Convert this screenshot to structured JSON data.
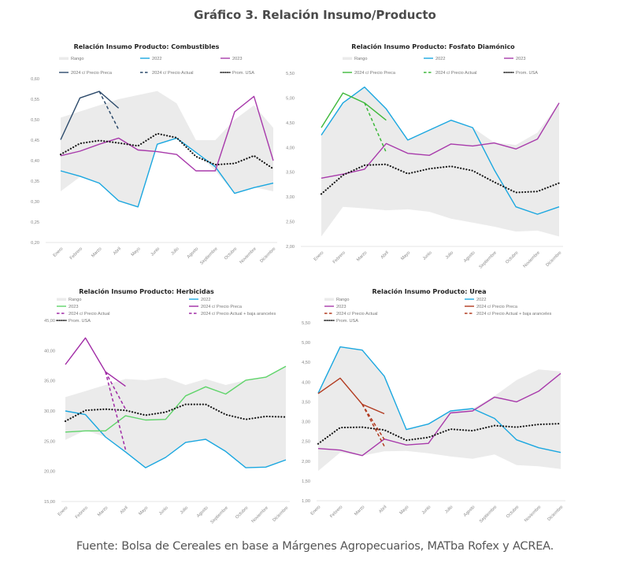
{
  "title": "Gráfico 3. Relación Insumo/Producto",
  "footer": "Fuente: Bolsa de Cereales en base a Márgenes Agropecuarios, MATba Rofex y ACREA.",
  "colors": {
    "range": "#ebebeb",
    "y2022": "#1aa7e0",
    "y2023": "#a83aab",
    "prom_usa": "#1a1a1a",
    "combustibles_2024": "#2c4a6b",
    "fosfato_2024": "#3db83a",
    "herbicidas_2023": "#5fd46a",
    "herbicidas_2024": "#a02aa5",
    "urea_2024": "#b23a1f"
  },
  "chart_data": [
    {
      "id": "combustibles",
      "type": "line",
      "title": "Relación Insumo Producto: Combustibles",
      "categories": [
        "Enero",
        "Febrero",
        "Marzo",
        "Abril",
        "Mayo",
        "Junio",
        "Julio",
        "Agosto",
        "Septiembre",
        "Octubre",
        "Noviembre",
        "Diciembre"
      ],
      "ylim": [
        0.2,
        0.6
      ],
      "yticks": [
        "0,20",
        "0,25",
        "0,30",
        "0,35",
        "0,40",
        "0,45",
        "0,50",
        "0,55",
        "0,60"
      ],
      "ytick_values": [
        0.2,
        0.25,
        0.3,
        0.35,
        0.4,
        0.45,
        0.5,
        0.55,
        0.6
      ],
      "legend": [
        "Rango",
        "2022",
        "2023",
        "2024 c/ Precio Preca",
        "2024 c/ Precio Actual",
        "Prom. USA"
      ],
      "range": {
        "name": "Rango",
        "upper": [
          0.505,
          0.52,
          0.535,
          0.55,
          0.56,
          0.57,
          0.54,
          0.45,
          0.45,
          0.5,
          0.535,
          0.48
        ],
        "lower": [
          0.325,
          0.36,
          0.345,
          0.3,
          0.285,
          0.44,
          0.455,
          0.42,
          0.375,
          0.32,
          0.335,
          0.325
        ]
      },
      "series": [
        {
          "name": "2022",
          "color_key": "y2022",
          "style": "solid",
          "values": [
            0.375,
            0.362,
            0.345,
            0.302,
            0.287,
            0.44,
            0.455,
            0.42,
            0.385,
            0.32,
            0.334,
            0.345
          ]
        },
        {
          "name": "2023",
          "color_key": "y2023",
          "style": "solid",
          "values": [
            0.412,
            0.423,
            0.44,
            0.455,
            0.426,
            0.422,
            0.415,
            0.375,
            0.375,
            0.519,
            0.557,
            0.4
          ]
        },
        {
          "name": "2024 c/ Precio Preca",
          "color_key": "combustibles_2024",
          "style": "solid",
          "values": [
            0.451,
            0.553,
            0.569,
            0.528,
            null,
            null,
            null,
            null,
            null,
            null,
            null,
            null
          ]
        },
        {
          "name": "2024 c/ Precio Actual",
          "color_key": "combustibles_2024",
          "style": "dashed",
          "values": [
            null,
            null,
            0.569,
            0.476,
            null,
            null,
            null,
            null,
            null,
            null,
            null,
            null
          ]
        },
        {
          "name": "Prom. USA",
          "color_key": "prom_usa",
          "style": "dotted",
          "values": [
            0.415,
            0.442,
            0.449,
            0.443,
            0.436,
            0.466,
            0.456,
            0.41,
            0.39,
            0.393,
            0.412,
            0.38
          ]
        }
      ]
    },
    {
      "id": "fosfato",
      "type": "line",
      "title": "Relación Insumo Producto: Fosfato Diamónico",
      "categories": [
        "Enero",
        "Febrero",
        "Marzo",
        "Abril",
        "Mayo",
        "Junio",
        "Julio",
        "Agosto",
        "Septiembre",
        "Octubre",
        "Noviembre",
        "Diciembre"
      ],
      "ylim": [
        2.0,
        5.5
      ],
      "yticks": [
        "2,00",
        "2,50",
        "3,00",
        "3,50",
        "4,00",
        "4,50",
        "5,00",
        "5,50"
      ],
      "ytick_values": [
        2.0,
        2.5,
        3.0,
        3.5,
        4.0,
        4.5,
        5.0,
        5.5
      ],
      "legend": [
        "Rango",
        "2022",
        "2023",
        "2024 c/ Precio Preca",
        "2024 c/ Precio Actual",
        "Prom. USA"
      ],
      "range": {
        "name": "Rango",
        "upper": [
          4.25,
          4.9,
          5.22,
          4.78,
          4.15,
          4.35,
          4.55,
          4.4,
          4.1,
          4.05,
          4.3,
          4.9
        ],
        "lower": [
          2.2,
          2.8,
          2.77,
          2.73,
          2.75,
          2.7,
          2.56,
          2.48,
          2.4,
          2.3,
          2.32,
          2.2
        ]
      },
      "series": [
        {
          "name": "2022",
          "color_key": "y2022",
          "style": "solid",
          "values": [
            4.25,
            4.9,
            5.22,
            4.78,
            4.15,
            4.35,
            4.55,
            4.4,
            3.55,
            2.8,
            2.65,
            2.8
          ]
        },
        {
          "name": "2023",
          "color_key": "y2023",
          "style": "solid",
          "values": [
            3.38,
            3.46,
            3.56,
            4.08,
            3.88,
            3.84,
            4.07,
            4.03,
            4.09,
            3.97,
            4.17,
            4.9
          ]
        },
        {
          "name": "2024 c/ Precio Preca",
          "color_key": "fosfato_2024",
          "style": "solid",
          "values": [
            4.4,
            5.1,
            4.9,
            4.55,
            null,
            null,
            null,
            null,
            null,
            null,
            null,
            null
          ]
        },
        {
          "name": "2024 c/ Precio Actual",
          "color_key": "fosfato_2024",
          "style": "dashed",
          "values": [
            null,
            null,
            4.9,
            3.9,
            null,
            null,
            null,
            null,
            null,
            null,
            null,
            null
          ]
        },
        {
          "name": "Prom. USA",
          "color_key": "prom_usa",
          "style": "dotted",
          "values": [
            3.06,
            3.44,
            3.64,
            3.66,
            3.47,
            3.57,
            3.62,
            3.53,
            3.3,
            3.09,
            3.11,
            3.28
          ]
        }
      ]
    },
    {
      "id": "herbicidas",
      "type": "line",
      "title": "Relación Insumo Producto: Herbicidas",
      "categories": [
        "Enero",
        "Febrero",
        "Marzo",
        "Abril",
        "Mayo",
        "Junio",
        "Julio",
        "Agosto",
        "Septiembre",
        "Octubre",
        "Noviembre",
        "Diciembre"
      ],
      "ylim": [
        15,
        45
      ],
      "yticks": [
        "15,00",
        "20,00",
        "25,00",
        "30,00",
        "35,00",
        "40,00",
        "45,00"
      ],
      "ytick_values": [
        15,
        20,
        25,
        30,
        35,
        40,
        45
      ],
      "legend": [
        "Rango",
        "2022",
        "2023",
        "2024 c/ Precio Preca",
        "2024 c/ Precio Actual",
        "2024 c/ Precio Actual + baja aranceles",
        "Prom. USA"
      ],
      "range": {
        "name": "Rango",
        "upper": [
          32.3,
          33.3,
          34.3,
          35.3,
          35.1,
          35.5,
          34.3,
          35.3,
          34.3,
          35.1,
          35.6,
          37.4
        ],
        "lower": [
          25.2,
          26.8,
          25.7,
          23.2,
          20.6,
          22.3,
          24.8,
          25.3,
          23.3,
          20.6,
          20.7,
          21.9
        ]
      },
      "series": [
        {
          "name": "2022",
          "color_key": "y2022",
          "style": "solid",
          "values": [
            30.0,
            29.4,
            25.7,
            23.2,
            20.6,
            22.3,
            24.8,
            25.3,
            23.3,
            20.6,
            20.7,
            21.9
          ]
        },
        {
          "name": "2023",
          "color_key": "herbicidas_2023",
          "style": "solid",
          "values": [
            26.5,
            26.7,
            26.7,
            29.2,
            28.5,
            28.6,
            32.5,
            34.0,
            32.8,
            35.1,
            35.6,
            37.4
          ]
        },
        {
          "name": "2024 c/ Precio Preca",
          "color_key": "herbicidas_2024",
          "style": "solid",
          "values": [
            37.7,
            42.1,
            36.5,
            34.1,
            null,
            null,
            null,
            null,
            null,
            null,
            null,
            null
          ]
        },
        {
          "name": "2024 c/ Precio Actual",
          "color_key": "herbicidas_2024",
          "style": "dashed",
          "values": [
            null,
            null,
            36.5,
            23.6,
            null,
            null,
            null,
            null,
            null,
            null,
            null,
            null
          ]
        },
        {
          "name": "2024 c/ Precio Actual + baja aranceles",
          "color_key": "herbicidas_2024",
          "style": "dashed",
          "values": [
            null,
            null,
            36.5,
            30.3,
            null,
            null,
            null,
            null,
            null,
            null,
            null,
            null
          ]
        },
        {
          "name": "Prom. USA",
          "color_key": "prom_usa",
          "style": "dotted",
          "values": [
            28.3,
            30.1,
            30.3,
            30.1,
            29.3,
            29.8,
            31.1,
            31.1,
            29.4,
            28.6,
            29.1,
            29.0
          ]
        }
      ]
    },
    {
      "id": "urea",
      "type": "line",
      "title": "Relación Insumo Producto: Urea",
      "categories": [
        "Enero",
        "Febrero",
        "Marzo",
        "Abril",
        "Mayo",
        "Junio",
        "Julio",
        "Agosto",
        "Septiembre",
        "Octubre",
        "Noviembre",
        "Diciembre"
      ],
      "ylim": [
        1.0,
        5.5
      ],
      "yticks": [
        "1,00",
        "1,50",
        "2,00",
        "2,50",
        "3,00",
        "3,50",
        "4,00",
        "4,50",
        "5,00",
        "5,50"
      ],
      "ytick_values": [
        1.0,
        1.5,
        2.0,
        2.5,
        3.0,
        3.5,
        4.0,
        4.5,
        5.0,
        5.5
      ],
      "legend": [
        "Rango",
        "2022",
        "2023",
        "2024 c/ Precio Preca",
        "2024 c/ Precio Actual",
        "2024 c/ Precio Actual + baja aranceles",
        "Prom. USA"
      ],
      "range": {
        "name": "Rango",
        "upper": [
          3.72,
          4.89,
          4.81,
          4.15,
          2.8,
          2.94,
          3.27,
          3.33,
          3.65,
          4.05,
          4.32,
          4.27
        ],
        "lower": [
          1.75,
          2.22,
          2.14,
          2.25,
          2.26,
          2.2,
          2.12,
          2.06,
          2.17,
          1.9,
          1.87,
          1.8
        ]
      },
      "series": [
        {
          "name": "2022",
          "color_key": "y2022",
          "style": "solid",
          "values": [
            3.72,
            4.89,
            4.81,
            4.15,
            2.8,
            2.94,
            3.27,
            3.33,
            3.08,
            2.54,
            2.34,
            2.22
          ]
        },
        {
          "name": "2023",
          "color_key": "y2023",
          "style": "solid",
          "values": [
            2.32,
            2.28,
            2.14,
            2.56,
            2.41,
            2.45,
            3.22,
            3.27,
            3.62,
            3.5,
            3.77,
            4.22
          ]
        },
        {
          "name": "2024 c/ Precio Preca",
          "color_key": "urea_2024",
          "style": "solid",
          "values": [
            3.71,
            4.1,
            3.44,
            3.2,
            null,
            null,
            null,
            null,
            null,
            null,
            null,
            null
          ]
        },
        {
          "name": "2024 c/ Precio Actual",
          "color_key": "urea_2024",
          "style": "dashed",
          "values": [
            null,
            null,
            3.44,
            2.55,
            null,
            null,
            null,
            null,
            null,
            null,
            null,
            null
          ]
        },
        {
          "name": "2024 c/ Precio Actual + baja aranceles",
          "color_key": "urea_2024",
          "style": "dashed",
          "values": [
            null,
            null,
            3.44,
            2.38,
            null,
            null,
            null,
            null,
            null,
            null,
            null,
            null
          ]
        },
        {
          "name": "Prom. USA",
          "color_key": "prom_usa",
          "style": "dotted",
          "values": [
            2.44,
            2.85,
            2.86,
            2.79,
            2.53,
            2.6,
            2.81,
            2.77,
            2.9,
            2.86,
            2.93,
            2.95
          ]
        }
      ]
    }
  ]
}
